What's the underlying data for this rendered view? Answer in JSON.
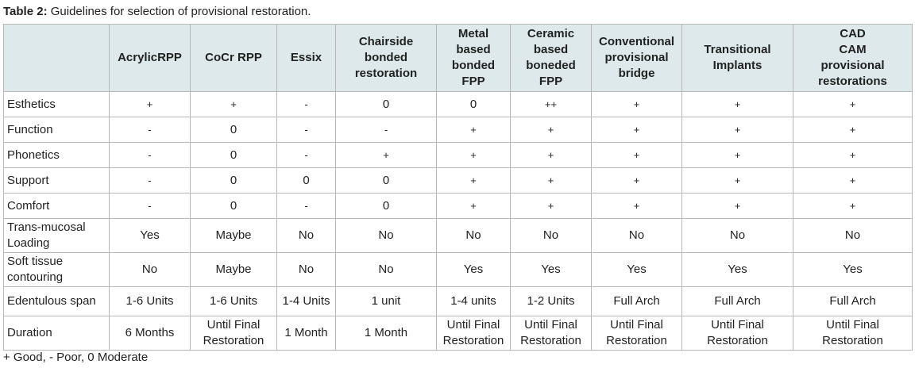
{
  "caption": {
    "label": "Table 2:",
    "text": " Guidelines for selection of provisional restoration."
  },
  "headers": [
    "",
    "AcrylicRPP",
    "CoCr RPP",
    "Essix",
    "Chairside\nbonded\nrestoration",
    "Metal\nbased\nbonded\nFPP",
    "Ceramic\nbased\nboneded\nFPP",
    "Conventional\nprovisional\nbridge",
    "Transitional\nImplants",
    "CAD\nCAM\nprovisional\nrestorations"
  ],
  "rows": [
    {
      "label": "Esthetics",
      "cells": [
        "+",
        "+",
        "-",
        "0",
        "0",
        "++",
        "+",
        "+",
        "+"
      ]
    },
    {
      "label": "Function",
      "cells": [
        "-",
        "0",
        "-",
        "-",
        "+",
        "+",
        "+",
        "+",
        "+"
      ]
    },
    {
      "label": "Phonetics",
      "cells": [
        "-",
        "0",
        "-",
        "+",
        "+",
        "+",
        "+",
        "+",
        "+"
      ]
    },
    {
      "label": "Support",
      "cells": [
        "-",
        "0",
        "0",
        "0",
        "+",
        "+",
        "+",
        "+",
        "+"
      ]
    },
    {
      "label": "Comfort",
      "cells": [
        "-",
        "0",
        "-",
        "0",
        "+",
        "+",
        "+",
        "+",
        "+"
      ]
    },
    {
      "label": "Trans-mucosal\nLoading",
      "cells": [
        "Yes",
        "Maybe",
        "No",
        "No",
        "No",
        "No",
        "No",
        "No",
        "No"
      ]
    },
    {
      "label": "Soft tissue\ncontouring",
      "cells": [
        "No",
        "Maybe",
        "No",
        "No",
        "Yes",
        "Yes",
        "Yes",
        "Yes",
        "Yes"
      ]
    },
    {
      "label": "Edentulous span",
      "cells": [
        "1-6 Units",
        "1-6 Units",
        "1-4 Units",
        "1 unit",
        "1-4 units",
        "1-2 Units",
        "Full Arch",
        "Full Arch",
        "Full Arch"
      ]
    },
    {
      "label": "Duration",
      "cells": [
        "6 Months",
        "Until Final\nRestoration",
        "1 Month",
        "1 Month",
        "Until Final\nRestoration",
        "Until Final\nRestoration",
        "Until Final\nRestoration",
        "Until Final\nRestoration",
        "Until Final\nRestoration"
      ]
    }
  ],
  "footnote": "+ Good, - Poor, 0 Moderate"
}
